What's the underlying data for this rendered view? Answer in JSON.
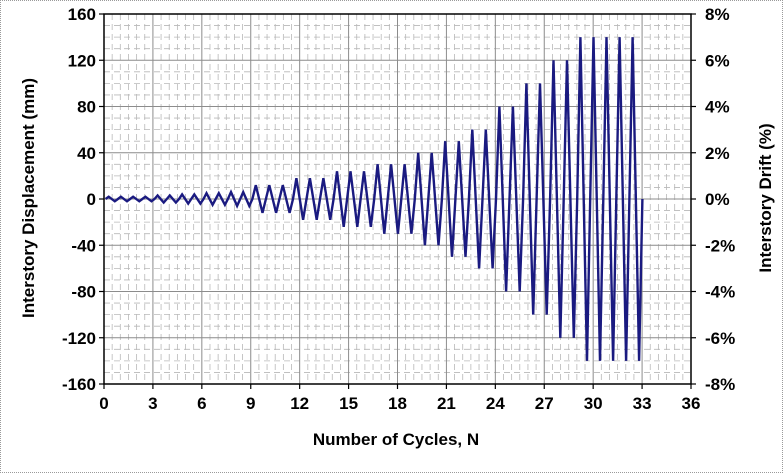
{
  "chart_data": {
    "type": "line",
    "title": "",
    "xlabel": "Number of Cycles, N",
    "ylabel": "Interstory Displacement (mm)",
    "y2label": "Interstory Drift (%)",
    "xlim": [
      0,
      36
    ],
    "ylim": [
      -160,
      160
    ],
    "y2lim": [
      -8,
      8
    ],
    "xticks": [
      0,
      3,
      6,
      9,
      12,
      15,
      18,
      21,
      24,
      27,
      30,
      33,
      36
    ],
    "yticks": [
      160,
      120,
      80,
      40,
      0,
      -40,
      -80,
      -120,
      -160
    ],
    "y2ticks": [
      "8%",
      "6%",
      "4%",
      "2%",
      "0%",
      "-2%",
      "-4%",
      "-6%",
      "-8%"
    ],
    "grid": true,
    "line_color": "#1a1a80",
    "series": [
      {
        "amplitudes": [
          2,
          2,
          2,
          2,
          3,
          3,
          4,
          4,
          5,
          5,
          6,
          6,
          12,
          12,
          12,
          18,
          18,
          18,
          24,
          24,
          24,
          30,
          30,
          30,
          40,
          40,
          50,
          50,
          60,
          60,
          80,
          80,
          100,
          100,
          120,
          120,
          140,
          140,
          140,
          140,
          140
        ],
        "cycle_length": [
          0.75,
          0.75,
          0.75,
          0.75,
          0.75,
          0.75,
          0.75,
          0.75,
          0.75,
          0.75,
          0.75,
          0.75,
          0.83,
          0.83,
          0.83,
          0.83,
          0.83,
          0.83,
          0.83,
          0.83,
          0.83,
          0.83,
          0.83,
          0.83,
          0.83,
          0.83,
          0.83,
          0.83,
          0.83,
          0.83,
          0.83,
          0.83,
          0.83,
          0.83,
          0.83,
          0.83,
          0.8,
          0.8,
          0.8,
          0.8,
          0.8
        ]
      }
    ]
  }
}
